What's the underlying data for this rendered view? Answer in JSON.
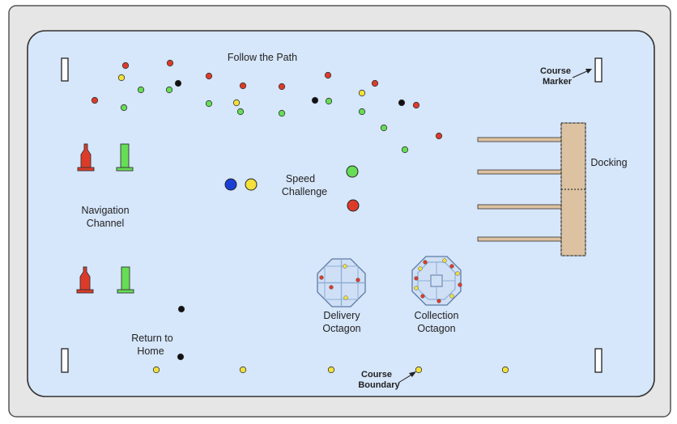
{
  "labels": {
    "follow_path": "Follow the Path",
    "course_marker_1": "Course",
    "course_marker_2": "Marker",
    "docking": "Docking",
    "speed_1": "Speed",
    "speed_2": "Challenge",
    "nav_1": "Navigation",
    "nav_2": "Channel",
    "delivery_1": "Delivery",
    "delivery_2": "Octagon",
    "collection_1": "Collection",
    "collection_2": "Octagon",
    "return_1": "Return to",
    "return_2": "Home",
    "boundary_1": "Course",
    "boundary_2": "Boundary"
  },
  "colors": {
    "frame": "#e6e6e6",
    "water": "#d6e6fb",
    "red": "#dd3b2a",
    "green": "#66dd55",
    "yellow": "#f3e03b",
    "black": "#111111",
    "blue": "#1a3fd6",
    "dock": "#dcc2a0",
    "octagon": "#cfe0f6",
    "octagon_line": "#8faed6"
  },
  "icons": {
    "red_buoy": "red-channel-buoy-icon",
    "green_buoy": "green-channel-buoy-icon",
    "marker": "course-marker-post-icon"
  }
}
